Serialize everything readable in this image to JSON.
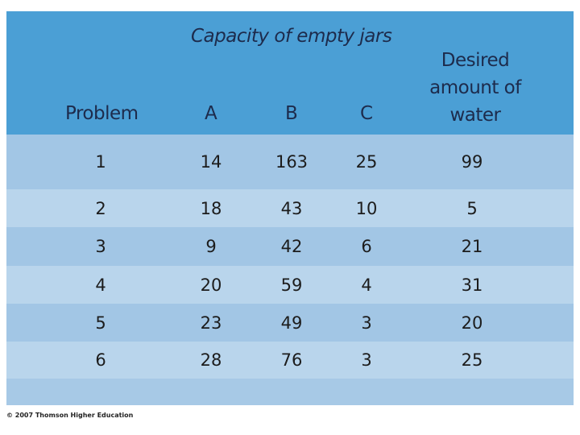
{
  "header": {
    "group_label": "Capacity of empty jars",
    "columns": [
      "Problem",
      "A",
      "B",
      "C",
      "Desired amount of water"
    ]
  },
  "table": {
    "rows": [
      [
        "1",
        "14",
        "163",
        "25",
        "99"
      ],
      [
        "2",
        "18",
        "43",
        "10",
        "5"
      ],
      [
        "3",
        "9",
        "42",
        "6",
        "21"
      ],
      [
        "4",
        "20",
        "59",
        "4",
        "31"
      ],
      [
        "5",
        "23",
        "49",
        "3",
        "20"
      ],
      [
        "6",
        "28",
        "76",
        "3",
        "25"
      ]
    ]
  },
  "footer": {
    "credit": "© 2007 Thomson Higher Education"
  }
}
